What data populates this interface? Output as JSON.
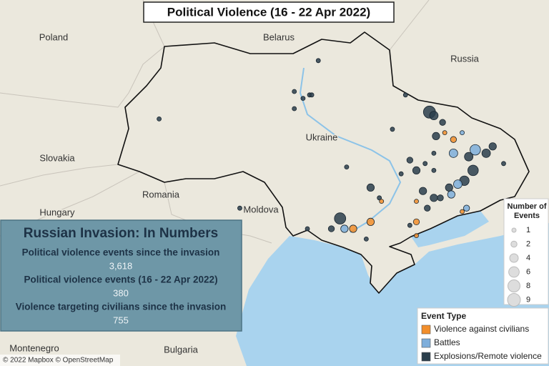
{
  "title": "Political Violence (16 - 22 Apr 2022)",
  "place_labels": [
    "Poland",
    "Belarus",
    "Russia",
    "Ukraine",
    "Slovakia",
    "Romania",
    "Hungary",
    "Moldova",
    "Bulgaria",
    "Montenegro"
  ],
  "info_box": {
    "heading": "Russian Invasion: In Numbers",
    "items": [
      {
        "label": "Political violence events since the invasion",
        "value": "3,618"
      },
      {
        "label": "Political violence events (16 - 22 Apr 2022)",
        "value": "380"
      },
      {
        "label": "Violence targeting civilians since the invasion",
        "value": "755"
      }
    ]
  },
  "size_legend": {
    "title": "Number of Events",
    "sizes": [
      1,
      2,
      4,
      6,
      8,
      9
    ]
  },
  "type_legend": {
    "title": "Event Type",
    "types": [
      {
        "name": "Violence against civilians",
        "color": "#f28e2b"
      },
      {
        "name": "Battles",
        "color": "#7eaedb"
      },
      {
        "name": "Explosions/Remote violence",
        "color": "#2b3e4c"
      }
    ]
  },
  "events": [
    {
      "lon": 23.7,
      "lat": 49.9,
      "count": 1,
      "type": 2
    },
    {
      "lon": 31.0,
      "lat": 51.6,
      "count": 1,
      "type": 2
    },
    {
      "lon": 29.9,
      "lat": 50.7,
      "count": 1,
      "type": 2
    },
    {
      "lon": 30.6,
      "lat": 50.6,
      "count": 1,
      "type": 2
    },
    {
      "lon": 30.3,
      "lat": 50.5,
      "count": 1,
      "type": 2
    },
    {
      "lon": 30.7,
      "lat": 50.6,
      "count": 1,
      "type": 2
    },
    {
      "lon": 29.9,
      "lat": 50.2,
      "count": 1,
      "type": 2
    },
    {
      "lon": 35.0,
      "lat": 50.6,
      "count": 1,
      "type": 2
    },
    {
      "lon": 34.4,
      "lat": 49.6,
      "count": 1,
      "type": 2
    },
    {
      "lon": 36.1,
      "lat": 50.1,
      "count": 8,
      "type": 2
    },
    {
      "lon": 36.3,
      "lat": 50.0,
      "count": 4,
      "type": 2
    },
    {
      "lon": 36.7,
      "lat": 49.8,
      "count": 2,
      "type": 2
    },
    {
      "lon": 36.4,
      "lat": 49.4,
      "count": 3,
      "type": 2
    },
    {
      "lon": 36.8,
      "lat": 49.5,
      "count": 1,
      "type": 0
    },
    {
      "lon": 37.2,
      "lat": 49.3,
      "count": 2,
      "type": 0
    },
    {
      "lon": 37.6,
      "lat": 49.5,
      "count": 1,
      "type": 1
    },
    {
      "lon": 37.2,
      "lat": 48.9,
      "count": 4,
      "type": 1
    },
    {
      "lon": 38.2,
      "lat": 49.0,
      "count": 6,
      "type": 1
    },
    {
      "lon": 38.7,
      "lat": 48.9,
      "count": 4,
      "type": 2
    },
    {
      "lon": 39.0,
      "lat": 49.1,
      "count": 3,
      "type": 2
    },
    {
      "lon": 37.9,
      "lat": 48.8,
      "count": 4,
      "type": 2
    },
    {
      "lon": 38.1,
      "lat": 48.4,
      "count": 6,
      "type": 2
    },
    {
      "lon": 37.7,
      "lat": 48.1,
      "count": 5,
      "type": 2
    },
    {
      "lon": 37.4,
      "lat": 48.0,
      "count": 4,
      "type": 1
    },
    {
      "lon": 37.0,
      "lat": 47.9,
      "count": 3,
      "type": 2
    },
    {
      "lon": 39.5,
      "lat": 48.6,
      "count": 1,
      "type": 2
    },
    {
      "lon": 36.3,
      "lat": 48.4,
      "count": 1,
      "type": 2
    },
    {
      "lon": 36.3,
      "lat": 48.9,
      "count": 1,
      "type": 2
    },
    {
      "lon": 35.5,
      "lat": 48.4,
      "count": 3,
      "type": 2
    },
    {
      "lon": 35.2,
      "lat": 48.7,
      "count": 2,
      "type": 2
    },
    {
      "lon": 35.9,
      "lat": 48.6,
      "count": 1,
      "type": 2
    },
    {
      "lon": 34.8,
      "lat": 48.3,
      "count": 1,
      "type": 2
    },
    {
      "lon": 35.8,
      "lat": 47.8,
      "count": 3,
      "type": 2
    },
    {
      "lon": 36.3,
      "lat": 47.6,
      "count": 3,
      "type": 2
    },
    {
      "lon": 35.5,
      "lat": 47.5,
      "count": 1,
      "type": 0
    },
    {
      "lon": 36.0,
      "lat": 47.3,
      "count": 2,
      "type": 2
    },
    {
      "lon": 37.6,
      "lat": 47.2,
      "count": 1,
      "type": 0
    },
    {
      "lon": 37.8,
      "lat": 47.3,
      "count": 2,
      "type": 1
    },
    {
      "lon": 36.6,
      "lat": 47.6,
      "count": 2,
      "type": 2
    },
    {
      "lon": 37.1,
      "lat": 47.7,
      "count": 3,
      "type": 1
    },
    {
      "lon": 33.4,
      "lat": 47.9,
      "count": 3,
      "type": 2
    },
    {
      "lon": 33.8,
      "lat": 47.6,
      "count": 1,
      "type": 2
    },
    {
      "lon": 33.9,
      "lat": 47.5,
      "count": 1,
      "type": 0
    },
    {
      "lon": 32.3,
      "lat": 48.5,
      "count": 1,
      "type": 2
    },
    {
      "lon": 32.0,
      "lat": 47.0,
      "count": 7,
      "type": 2
    },
    {
      "lon": 32.2,
      "lat": 46.7,
      "count": 3,
      "type": 1
    },
    {
      "lon": 32.6,
      "lat": 46.7,
      "count": 3,
      "type": 0
    },
    {
      "lon": 33.4,
      "lat": 46.9,
      "count": 3,
      "type": 0
    },
    {
      "lon": 31.6,
      "lat": 46.7,
      "count": 2,
      "type": 2
    },
    {
      "lon": 30.5,
      "lat": 46.7,
      "count": 1,
      "type": 2
    },
    {
      "lon": 33.2,
      "lat": 46.4,
      "count": 1,
      "type": 2
    },
    {
      "lon": 35.5,
      "lat": 46.9,
      "count": 2,
      "type": 0
    },
    {
      "lon": 35.5,
      "lat": 46.5,
      "count": 1,
      "type": 0
    },
    {
      "lon": 35.2,
      "lat": 46.8,
      "count": 1,
      "type": 2
    },
    {
      "lon": 27.4,
      "lat": 47.3,
      "count": 1,
      "type": 2
    }
  ],
  "attribution": "© 2022 Mapbox © OpenStreetMap"
}
